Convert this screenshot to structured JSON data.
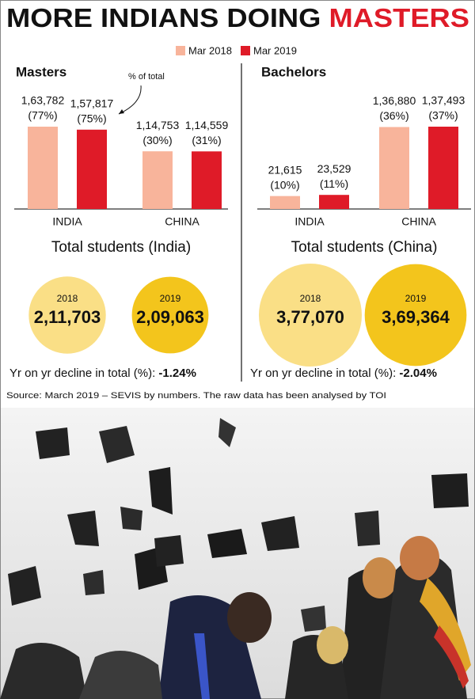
{
  "title": {
    "lead": "MORE INDIANS DOING",
    "highlight": "MASTERS"
  },
  "chart_data": [
    {
      "type": "bar",
      "title": "Masters",
      "annotation": "% of total",
      "categories": [
        "INDIA",
        "CHINA"
      ],
      "series": [
        {
          "name": "Mar 2018",
          "color": "#f8b49b",
          "values": [
            163782,
            114753
          ],
          "value_labels": [
            "1,63,782",
            "1,14,753"
          ],
          "share_labels": [
            "(77%)",
            "(30%)"
          ]
        },
        {
          "name": "Mar 2019",
          "color": "#df1b28",
          "values": [
            157817,
            114559
          ],
          "value_labels": [
            "1,57,817",
            "1,14,559"
          ],
          "share_labels": [
            "(75%)",
            "(31%)"
          ]
        }
      ]
    },
    {
      "type": "bar",
      "title": "Bachelors",
      "categories": [
        "INDIA",
        "CHINA"
      ],
      "series": [
        {
          "name": "Mar 2018",
          "color": "#f8b49b",
          "values": [
            21615,
            136880
          ],
          "value_labels": [
            "21,615",
            "1,36,880"
          ],
          "share_labels": [
            "(10%)",
            "(36%)"
          ]
        },
        {
          "name": "Mar 2019",
          "color": "#df1b28",
          "values": [
            23529,
            137493
          ],
          "value_labels": [
            "23,529",
            "1,37,493"
          ],
          "share_labels": [
            "(11%)",
            "(37%)"
          ]
        }
      ]
    }
  ],
  "totals": [
    {
      "title": "Total students (India)",
      "years": [
        {
          "year": "2018",
          "value": 211703,
          "label": "2,11,703",
          "color": "#fadf86"
        },
        {
          "year": "2019",
          "value": 209063,
          "label": "2,09,063",
          "color": "#f3c51c"
        }
      ],
      "decline_text": "Yr on yr decline in total (%):",
      "decline": {
        "value": -1.24,
        "label": "-1.24%"
      }
    },
    {
      "title": "Total students (China)",
      "years": [
        {
          "year": "2018",
          "value": 377070,
          "label": "3,77,070",
          "color": "#fadf86"
        },
        {
          "year": "2019",
          "value": 369364,
          "label": "3,69,364",
          "color": "#f3c51c"
        }
      ],
      "decline_text": "Yr on yr decline in total (%):",
      "decline": {
        "value": -2.04,
        "label": "-2.04%"
      }
    }
  ],
  "source": "Source: March 2019 – SEVIS by numbers. The raw data has been analysed by TOI"
}
